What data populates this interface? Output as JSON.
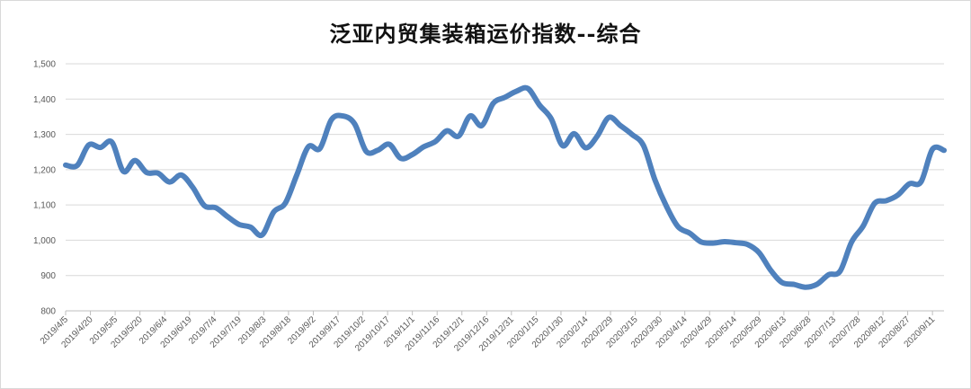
{
  "chart_data": {
    "type": "line",
    "title": "泛亚内贸集装箱运价指数--综合",
    "xlabel": "",
    "ylabel": "",
    "ylim": [
      800,
      1500
    ],
    "yticks": [
      800,
      900,
      1000,
      1100,
      1200,
      1300,
      1400,
      1500
    ],
    "ytick_labels": [
      "800",
      "900",
      "1,000",
      "1,100",
      "1,200",
      "1,300",
      "1,400",
      "1,500"
    ],
    "grid": true,
    "legend": "none",
    "line_color": "#4f81bd",
    "x_tick_labels": [
      "2019/4/5",
      "2019/4/20",
      "2019/5/5",
      "2019/5/20",
      "2019/6/4",
      "2019/6/19",
      "2019/7/4",
      "2019/7/19",
      "2019/8/3",
      "2019/8/18",
      "2019/9/2",
      "2019/9/17",
      "2019/10/2",
      "2019/10/17",
      "2019/11/1",
      "2019/11/16",
      "2019/12/1",
      "2019/12/16",
      "2019/12/31",
      "2020/1/15",
      "2020/1/30",
      "2020/2/14",
      "2020/2/29",
      "2020/3/15",
      "2020/3/30",
      "2020/4/14",
      "2020/4/29",
      "2020/5/14",
      "2020/5/29",
      "2020/6/13",
      "2020/6/28",
      "2020/7/13",
      "2020/7/28",
      "2020/8/12",
      "2020/8/27",
      "2020/9/11"
    ],
    "x_start": "2019/4/5",
    "x_end": "2020/9/18",
    "series": [
      {
        "points": [
          [
            "2019/4/5",
            1213
          ],
          [
            "2019/4/12",
            1212
          ],
          [
            "2019/4/19",
            1270
          ],
          [
            "2019/4/26",
            1263
          ],
          [
            "2019/5/3",
            1278
          ],
          [
            "2019/5/10",
            1195
          ],
          [
            "2019/5/17",
            1226
          ],
          [
            "2019/5/24",
            1192
          ],
          [
            "2019/5/31",
            1190
          ],
          [
            "2019/6/7",
            1165
          ],
          [
            "2019/6/14",
            1185
          ],
          [
            "2019/6/21",
            1150
          ],
          [
            "2019/6/28",
            1098
          ],
          [
            "2019/7/5",
            1092
          ],
          [
            "2019/7/12",
            1067
          ],
          [
            "2019/7/19",
            1045
          ],
          [
            "2019/7/26",
            1037
          ],
          [
            "2019/8/2",
            1015
          ],
          [
            "2019/8/9",
            1080
          ],
          [
            "2019/8/16",
            1105
          ],
          [
            "2019/8/23",
            1185
          ],
          [
            "2019/8/30",
            1265
          ],
          [
            "2019/9/6",
            1260
          ],
          [
            "2019/9/13",
            1342
          ],
          [
            "2019/9/20",
            1352
          ],
          [
            "2019/9/27",
            1330
          ],
          [
            "2019/10/4",
            1252
          ],
          [
            "2019/10/11",
            1255
          ],
          [
            "2019/10/18",
            1272
          ],
          [
            "2019/10/25",
            1232
          ],
          [
            "2019/11/1",
            1243
          ],
          [
            "2019/11/8",
            1265
          ],
          [
            "2019/11/15",
            1280
          ],
          [
            "2019/11/22",
            1310
          ],
          [
            "2019/11/29",
            1295
          ],
          [
            "2019/12/6",
            1352
          ],
          [
            "2019/12/13",
            1325
          ],
          [
            "2019/12/20",
            1388
          ],
          [
            "2019/12/27",
            1405
          ],
          [
            "2020/1/3",
            1422
          ],
          [
            "2020/1/10",
            1430
          ],
          [
            "2020/1/17",
            1383
          ],
          [
            "2020/1/24",
            1345
          ],
          [
            "2020/1/31",
            1268
          ],
          [
            "2020/2/7",
            1302
          ],
          [
            "2020/2/14",
            1262
          ],
          [
            "2020/2/21",
            1295
          ],
          [
            "2020/2/28",
            1348
          ],
          [
            "2020/3/6",
            1325
          ],
          [
            "2020/3/13",
            1300
          ],
          [
            "2020/3/20",
            1268
          ],
          [
            "2020/3/27",
            1170
          ],
          [
            "2020/4/3",
            1095
          ],
          [
            "2020/4/10",
            1038
          ],
          [
            "2020/4/17",
            1020
          ],
          [
            "2020/4/24",
            995
          ],
          [
            "2020/5/1",
            992
          ],
          [
            "2020/5/8",
            996
          ],
          [
            "2020/5/15",
            993
          ],
          [
            "2020/5/22",
            988
          ],
          [
            "2020/5/29",
            965
          ],
          [
            "2020/6/5",
            915
          ],
          [
            "2020/6/12",
            880
          ],
          [
            "2020/6/19",
            875
          ],
          [
            "2020/6/26",
            867
          ],
          [
            "2020/7/3",
            875
          ],
          [
            "2020/7/10",
            902
          ],
          [
            "2020/7/17",
            912
          ],
          [
            "2020/7/24",
            995
          ],
          [
            "2020/7/31",
            1040
          ],
          [
            "2020/8/7",
            1105
          ],
          [
            "2020/8/14",
            1112
          ],
          [
            "2020/8/21",
            1128
          ],
          [
            "2020/8/28",
            1160
          ],
          [
            "2020/9/4",
            1165
          ],
          [
            "2020/9/11",
            1258
          ],
          [
            "2020/9/18",
            1255
          ]
        ]
      }
    ]
  }
}
